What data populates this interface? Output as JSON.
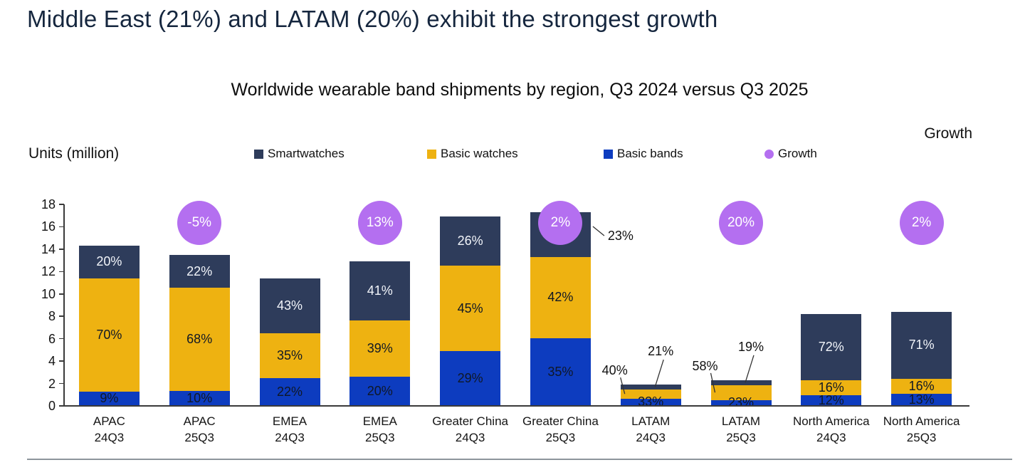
{
  "page": {
    "title": "Middle East (21%) and LATAM (20%) exhibit the strongest growth",
    "chart_title": "Worldwide wearable band shipments by region, Q3 2024 versus Q3 2025",
    "units_label": "Units (million)",
    "growth_axis_label": "Growth",
    "title_color": "#15263e",
    "divider_color": "#8d959c"
  },
  "legend": [
    {
      "label": "Smartwatches",
      "color": "#2e3c5b",
      "marker": "square"
    },
    {
      "label": "Basic watches",
      "color": "#eeb211",
      "marker": "square"
    },
    {
      "label": "Basic bands",
      "color": "#0d3cbf",
      "marker": "square"
    },
    {
      "label": "Growth",
      "color": "#b46ff0",
      "marker": "circle"
    }
  ],
  "chart_data": {
    "type": "bar",
    "stacked": true,
    "grid": false,
    "title": "Worldwide wearable band shipments by region, Q3 2024 versus Q3 2025",
    "xlabel": "",
    "ylabel": "Units (million)",
    "ylim": [
      0,
      18
    ],
    "yticks": [
      0,
      2,
      4,
      6,
      8,
      10,
      12,
      14,
      16,
      18
    ],
    "categories": [
      {
        "region": "APAC",
        "quarter": "24Q3"
      },
      {
        "region": "APAC",
        "quarter": "25Q3"
      },
      {
        "region": "EMEA",
        "quarter": "24Q3"
      },
      {
        "region": "EMEA",
        "quarter": "25Q3"
      },
      {
        "region": "Greater China",
        "quarter": "24Q3"
      },
      {
        "region": "Greater China",
        "quarter": "25Q3"
      },
      {
        "region": "LATAM",
        "quarter": "24Q3"
      },
      {
        "region": "LATAM",
        "quarter": "25Q3"
      },
      {
        "region": "North America",
        "quarter": "24Q3"
      },
      {
        "region": "North America",
        "quarter": "25Q3"
      }
    ],
    "totals_million": [
      14.3,
      13.5,
      11.4,
      12.9,
      16.9,
      17.3,
      1.9,
      2.3,
      8.2,
      8.4
    ],
    "series": [
      {
        "name": "Basic bands",
        "color": "#0d3cbf",
        "label_color": "#101826",
        "shares_pct": [
          9,
          10,
          22,
          20,
          29,
          35,
          33,
          23,
          12,
          13
        ]
      },
      {
        "name": "Basic watches",
        "color": "#eeb211",
        "label_color": "#101826",
        "shares_pct": [
          70,
          68,
          35,
          39,
          45,
          42,
          40,
          58,
          16,
          16
        ]
      },
      {
        "name": "Smartwatches",
        "color": "#2e3c5b",
        "label_color": "#f2f5fa",
        "shares_pct": [
          20,
          22,
          43,
          41,
          26,
          23,
          21,
          19,
          72,
          71
        ]
      }
    ],
    "growth_labels": [
      null,
      "-5%",
      null,
      "13%",
      null,
      "2%",
      null,
      "20%",
      null,
      "2%"
    ],
    "growth_color": "#b46ff0",
    "callouts": [
      {
        "category_index": 5,
        "series": "Smartwatches",
        "side": "right"
      },
      {
        "category_index": 6,
        "series": "Basic watches",
        "side": "left"
      },
      {
        "category_index": 6,
        "series": "Smartwatches",
        "side": "top"
      },
      {
        "category_index": 7,
        "series": "Basic watches",
        "side": "left"
      },
      {
        "category_index": 7,
        "series": "Smartwatches",
        "side": "top"
      }
    ],
    "legend_position": "top"
  }
}
